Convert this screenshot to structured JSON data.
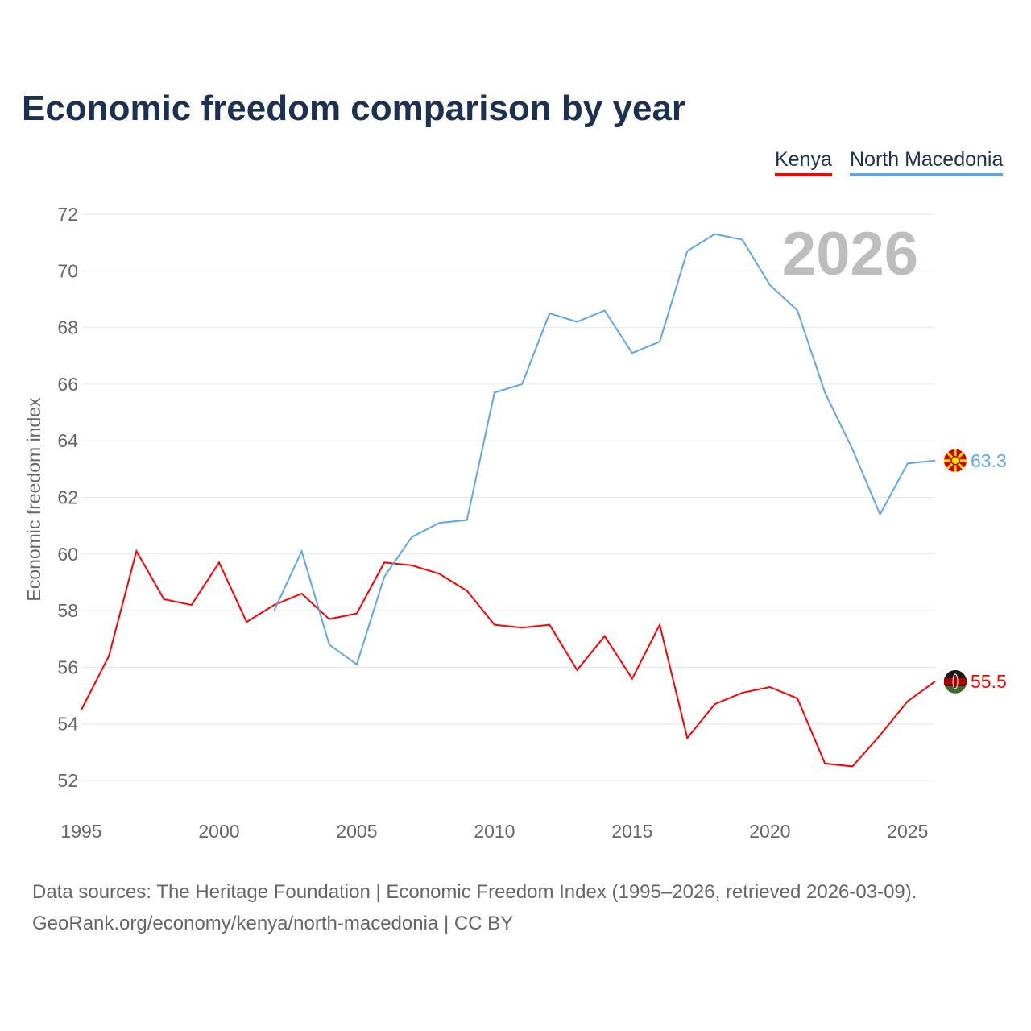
{
  "title": "Economic freedom comparison by year",
  "legend": [
    {
      "label": "Kenya",
      "color": "#ff0000"
    },
    {
      "label": "North Macedonia",
      "color": "#5ea6ea"
    }
  ],
  "footer": {
    "line1": "Data sources: The Heritage Foundation | Economic Freedom Index (1995–2026, retrieved 2026-03-09).",
    "line2": "GeoRank.org/economy/kenya/north-macedonia | CC BY"
  },
  "chart_data": {
    "type": "line",
    "title": "Economic freedom comparison by year",
    "xlabel": "",
    "ylabel": "Economic freedom index",
    "year_watermark": "2026",
    "xlim": [
      1995,
      2026
    ],
    "ylim": [
      51,
      73
    ],
    "xticks": [
      "1995",
      "2000",
      "2005",
      "2010",
      "2015",
      "2020",
      "2025"
    ],
    "yticks": [
      "52",
      "54",
      "56",
      "58",
      "60",
      "62",
      "64",
      "66",
      "68",
      "70",
      "72"
    ],
    "grid": true,
    "legend_position": "top-right",
    "series": [
      {
        "name": "Kenya",
        "color": "#ff0000",
        "end_label": "55.5",
        "x": [
          1995,
          1996,
          1997,
          1998,
          1999,
          2000,
          2001,
          2002,
          2003,
          2004,
          2005,
          2006,
          2007,
          2008,
          2009,
          2010,
          2011,
          2012,
          2013,
          2014,
          2015,
          2016,
          2017,
          2018,
          2019,
          2020,
          2021,
          2022,
          2023,
          2024,
          2025,
          2026
        ],
        "values": [
          54.5,
          56.4,
          60.1,
          58.4,
          58.2,
          59.7,
          57.6,
          58.2,
          58.6,
          57.7,
          57.9,
          59.7,
          59.6,
          59.3,
          58.7,
          57.5,
          57.4,
          57.5,
          55.9,
          57.1,
          55.6,
          57.5,
          53.5,
          54.7,
          55.1,
          55.3,
          54.9,
          52.6,
          52.5,
          53.6,
          54.8,
          55.5
        ]
      },
      {
        "name": "North Macedonia",
        "color": "#5ea6ea",
        "end_label": "63.3",
        "x": [
          2002,
          2003,
          2004,
          2005,
          2006,
          2007,
          2008,
          2009,
          2010,
          2011,
          2012,
          2013,
          2014,
          2015,
          2016,
          2017,
          2018,
          2019,
          2020,
          2021,
          2022,
          2023,
          2024,
          2025,
          2026
        ],
        "values": [
          58.0,
          60.1,
          56.8,
          56.1,
          59.2,
          60.6,
          61.1,
          61.2,
          65.7,
          66.0,
          68.5,
          68.2,
          68.6,
          67.1,
          67.5,
          70.7,
          71.3,
          71.1,
          69.5,
          68.6,
          65.7,
          63.7,
          61.4,
          63.2,
          63.3
        ]
      }
    ]
  }
}
